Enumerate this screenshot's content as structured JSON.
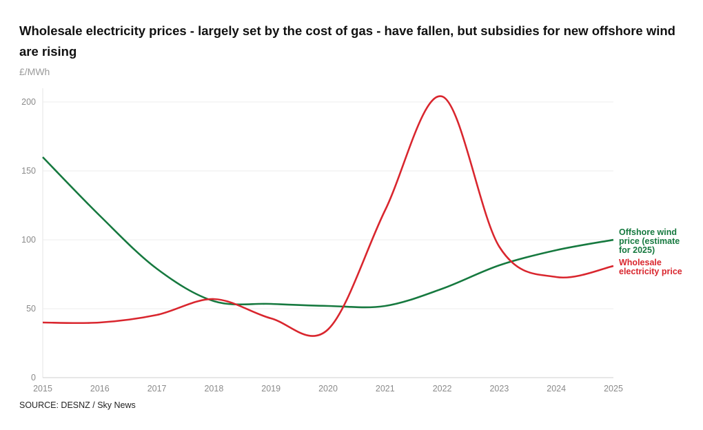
{
  "title": "Wholesale electricity prices - largely set by the cost of gas - have fallen, but subsidies for new offshore wind are rising",
  "source": "SOURCE: DESNZ / Sky News",
  "chart_data": {
    "type": "line",
    "title": "Wholesale electricity prices - largely set by the cost of gas - have fallen, but subsidies for new offshore wind are rising",
    "ylabel": "£/MWh",
    "x": [
      2015,
      2016,
      2017,
      2018,
      2019,
      2020,
      2021,
      2022,
      2023,
      2024,
      2025
    ],
    "xticks": [
      "2015",
      "2016",
      "2017",
      "2018",
      "2019",
      "2020",
      "2021",
      "2022",
      "2023",
      "2024",
      "2025"
    ],
    "yticks": [
      "0",
      "50",
      "100",
      "150",
      "200"
    ],
    "ylim": [
      0,
      200
    ],
    "xlim": [
      2015,
      2025
    ],
    "grid": true,
    "legend": "inline-right",
    "series": [
      {
        "name": "Offshore wind price (estimate for 2025)",
        "label_lines": [
          "Offshore wind",
          "price (estimate",
          "for 2025)"
        ],
        "color": "#16793f",
        "values": [
          160,
          117.5,
          79,
          55.5,
          53.5,
          52,
          52,
          64.5,
          81.5,
          92.5,
          100
        ]
      },
      {
        "name": "Wholesale electricity price",
        "label_lines": [
          "Wholesale",
          "electricity price"
        ],
        "color": "#d9262e",
        "values": [
          40,
          40,
          45.5,
          57,
          43,
          35,
          121.5,
          204,
          95,
          73,
          81
        ]
      }
    ]
  }
}
